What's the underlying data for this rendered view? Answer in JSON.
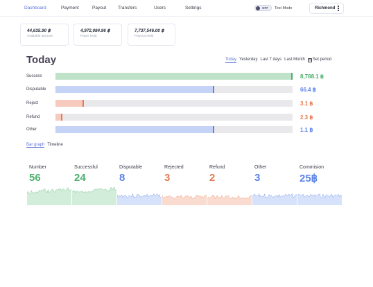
{
  "nav": {
    "items": [
      "Dashboard",
      "Payment",
      "Payout",
      "Transfers",
      "Users",
      "Settings"
    ],
    "active": "Dashboard",
    "test_mode": {
      "state_label": "OFF",
      "label": "Test Mode"
    },
    "user": {
      "name": "Richmond"
    }
  },
  "stats": [
    {
      "amount": "44,635.90 ฿",
      "label": "Available amount"
    },
    {
      "amount": "4,972,084.96 ฿",
      "label": "PayIn Hold"
    },
    {
      "amount": "7,737,546.00 ฿",
      "label": "PayOut Hold"
    }
  ],
  "today": {
    "title": "Today",
    "periods": [
      "Today",
      "Yesterday",
      "Last 7 days",
      "Last Month"
    ],
    "active_period": "Today",
    "set_period_label": "Set period"
  },
  "rows": [
    {
      "label": "Success",
      "value": "8,788.1 ฿",
      "fill": 1.0,
      "marker": 1.0,
      "fill_color": "#bfe3c9",
      "marker_color": "#4caf6e",
      "value_color": "#4caf6e"
    },
    {
      "label": "Disputable",
      "value": "66.4 ฿",
      "fill": 0.67,
      "marker": 0.67,
      "fill_color": "#c4d3f6",
      "marker_color": "#5b84e6",
      "value_color": "#5b84e6"
    },
    {
      "label": "Reject",
      "value": "3.1 ฿",
      "fill": 0.12,
      "marker": 0.12,
      "fill_color": "#f6cbbd",
      "marker_color": "#e67a52",
      "value_color": "#e67a52"
    },
    {
      "label": "Refund",
      "value": "2.3 ฿",
      "fill": 0.03,
      "marker": 0.03,
      "fill_color": "#f6cbbd",
      "marker_color": "#e67a52",
      "value_color": "#e67a52"
    },
    {
      "label": "Other",
      "value": "1.1 ฿",
      "fill": 0.67,
      "marker": 0.67,
      "fill_color": "#c4d3f6",
      "marker_color": "#5b84e6",
      "value_color": "#5b84e6"
    }
  ],
  "view_tabs": {
    "items": [
      "Bar graph",
      "Timeline"
    ],
    "active": "Bar graph"
  },
  "mini_cards": [
    {
      "title": "Number",
      "value": "56",
      "color": "#4caf6e",
      "fill": "#d3eddb",
      "seed": 1,
      "level": 0.45
    },
    {
      "title": "Successful",
      "value": "24",
      "color": "#4caf6e",
      "fill": "#d3eddb",
      "seed": 2,
      "level": 0.45
    },
    {
      "title": "Disputable",
      "value": "8",
      "color": "#5b84e6",
      "fill": "#d6e1fa",
      "seed": 3,
      "level": 0.6
    },
    {
      "title": "Rejected",
      "value": "3",
      "color": "#e67a52",
      "fill": "#fadbd0",
      "seed": 4,
      "level": 0.65
    },
    {
      "title": "Refund",
      "value": "2",
      "color": "#e67a52",
      "fill": "#fadbd0",
      "seed": 5,
      "level": 0.65
    },
    {
      "title": "Other",
      "value": "3",
      "color": "#5b84e6",
      "fill": "#d6e1fa",
      "seed": 6,
      "level": 0.6
    },
    {
      "title": "Commision",
      "value": "25฿",
      "color": "#5b84e6",
      "fill": "#d6e1fa",
      "seed": 7,
      "level": 0.6
    }
  ]
}
